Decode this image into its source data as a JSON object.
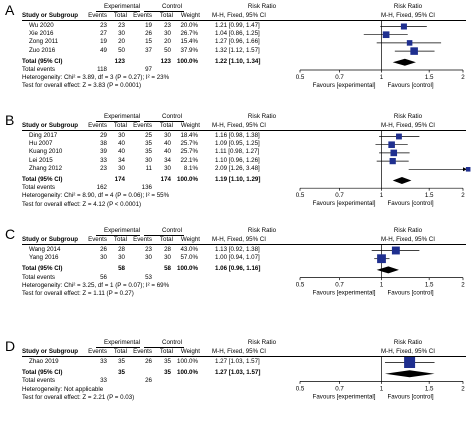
{
  "header": {
    "experimental": "Experimental",
    "control": "Control",
    "risk_ratio": "Risk Ratio",
    "study_col": "Study or Subgroup",
    "events": "Events",
    "total": "Total",
    "weight": "Weight",
    "mh_fixed": "M-H, Fixed, 95% CI"
  },
  "axis": {
    "ticks": [
      "0.5",
      "0.7",
      "1",
      "1.5",
      "2"
    ],
    "favours_left": "Favours [experimental]",
    "favours_right": "Favours [control]"
  },
  "chart_data": [
    {
      "type": "forest",
      "panel": "A",
      "scale": "log",
      "xlim": [
        0.5,
        2
      ],
      "studies": [
        {
          "name": "Wu 2020",
          "e_events": "23",
          "e_total": "23",
          "c_events": "19",
          "c_total": "23",
          "weight": "20.0%",
          "ci_text": "1.21 [0.99, 1.47]",
          "rr": 1.21,
          "lo": 0.99,
          "hi": 1.47,
          "w": 20.0
        },
        {
          "name": "Xie 2016",
          "e_events": "27",
          "e_total": "30",
          "c_events": "26",
          "c_total": "30",
          "weight": "26.7%",
          "ci_text": "1.04 [0.86, 1.25]",
          "rr": 1.04,
          "lo": 0.86,
          "hi": 1.25,
          "w": 26.7
        },
        {
          "name": "Zong 2011",
          "e_events": "19",
          "e_total": "20",
          "c_events": "15",
          "c_total": "20",
          "weight": "15.4%",
          "ci_text": "1.27 [0.96, 1.66]",
          "rr": 1.27,
          "lo": 0.96,
          "hi": 1.66,
          "w": 15.4
        },
        {
          "name": "Zuo 2016",
          "e_events": "49",
          "e_total": "50",
          "c_events": "37",
          "c_total": "50",
          "weight": "37.9%",
          "ci_text": "1.32 [1.12, 1.57]",
          "rr": 1.32,
          "lo": 1.12,
          "hi": 1.57,
          "w": 37.9
        }
      ],
      "total": {
        "label": "Total (95% CI)",
        "e_total": "123",
        "c_total": "123",
        "weight": "100.0%",
        "ci_text": "1.22 [1.10, 1.34]",
        "rr": 1.22,
        "lo": 1.1,
        "hi": 1.34
      },
      "total_events": {
        "label": "Total events",
        "e": "118",
        "c": "97"
      },
      "heterogeneity": "Heterogeneity: Chi² = 3.89, df = 3 (P = 0.27); I² = 23%",
      "overall": "Test for overall effect: Z = 3.83 (P = 0.0001)"
    },
    {
      "type": "forest",
      "panel": "B",
      "scale": "log",
      "xlim": [
        0.5,
        2
      ],
      "studies": [
        {
          "name": "Ding 2017",
          "e_events": "29",
          "e_total": "30",
          "c_events": "25",
          "c_total": "30",
          "weight": "18.4%",
          "ci_text": "1.16 [0.98, 1.38]",
          "rr": 1.16,
          "lo": 0.98,
          "hi": 1.38,
          "w": 18.4
        },
        {
          "name": "Hu 2007",
          "e_events": "38",
          "e_total": "40",
          "c_events": "35",
          "c_total": "40",
          "weight": "25.7%",
          "ci_text": "1.09 [0.95, 1.25]",
          "rr": 1.09,
          "lo": 0.95,
          "hi": 1.25,
          "w": 25.7
        },
        {
          "name": "Kuang 2010",
          "e_events": "39",
          "e_total": "40",
          "c_events": "35",
          "c_total": "40",
          "weight": "25.7%",
          "ci_text": "1.11 [0.98, 1.27]",
          "rr": 1.11,
          "lo": 0.98,
          "hi": 1.27,
          "w": 25.7
        },
        {
          "name": "Lei 2015",
          "e_events": "33",
          "e_total": "34",
          "c_events": "30",
          "c_total": "34",
          "weight": "22.1%",
          "ci_text": "1.10 [0.96, 1.26]",
          "rr": 1.1,
          "lo": 0.96,
          "hi": 1.26,
          "w": 22.1
        },
        {
          "name": "Zhang 2012",
          "e_events": "23",
          "e_total": "30",
          "c_events": "11",
          "c_total": "30",
          "weight": "8.1%",
          "ci_text": "2.09 [1.26, 3.48]",
          "rr": 2.09,
          "lo": 1.26,
          "hi": 3.48,
          "w": 8.1
        }
      ],
      "total": {
        "label": "Total (95% CI)",
        "e_total": "174",
        "c_total": "174",
        "weight": "100.0%",
        "ci_text": "1.19 [1.10, 1.29]",
        "rr": 1.19,
        "lo": 1.1,
        "hi": 1.29
      },
      "total_events": {
        "label": "Total events",
        "e": "162",
        "c": "136"
      },
      "heterogeneity": "Heterogeneity: Chi² = 8.90, df = 4 (P = 0.06); I² = 55%",
      "overall": "Test for overall effect: Z = 4.12 (P < 0.0001)"
    },
    {
      "type": "forest",
      "panel": "C",
      "scale": "log",
      "xlim": [
        0.5,
        2
      ],
      "studies": [
        {
          "name": "Wang 2014",
          "e_events": "26",
          "e_total": "28",
          "c_events": "23",
          "c_total": "28",
          "weight": "43.0%",
          "ci_text": "1.13 [0.92, 1.38]",
          "rr": 1.13,
          "lo": 0.92,
          "hi": 1.38,
          "w": 43.0
        },
        {
          "name": "Yang 2016",
          "e_events": "30",
          "e_total": "30",
          "c_events": "30",
          "c_total": "30",
          "weight": "57.0%",
          "ci_text": "1.00 [0.94, 1.07]",
          "rr": 1.0,
          "lo": 0.94,
          "hi": 1.07,
          "w": 57.0
        }
      ],
      "total": {
        "label": "Total (95% CI)",
        "e_total": "58",
        "c_total": "58",
        "weight": "100.0%",
        "ci_text": "1.06 [0.96, 1.16]",
        "rr": 1.06,
        "lo": 0.96,
        "hi": 1.16
      },
      "total_events": {
        "label": "Total events",
        "e": "56",
        "c": "53"
      },
      "heterogeneity": "Heterogeneity: Chi² = 3.25, df = 1 (P = 0.07); I² = 69%",
      "overall": "Test for overall effect: Z = 1.11 (P = 0.27)"
    },
    {
      "type": "forest",
      "panel": "D",
      "scale": "log",
      "xlim": [
        0.5,
        2
      ],
      "studies": [
        {
          "name": "Zhao 2019",
          "e_events": "33",
          "e_total": "35",
          "c_events": "26",
          "c_total": "35",
          "weight": "100.0%",
          "ci_text": "1.27 [1.03, 1.57]",
          "rr": 1.27,
          "lo": 1.03,
          "hi": 1.57,
          "w": 100.0
        }
      ],
      "total": {
        "label": "Total (95% CI)",
        "e_total": "35",
        "c_total": "35",
        "weight": "100.0%",
        "ci_text": "1.27 [1.03, 1.57]",
        "rr": 1.27,
        "lo": 1.03,
        "hi": 1.57
      },
      "total_events": {
        "label": "Total events",
        "e": "33",
        "c": "26"
      },
      "heterogeneity": "Heterogeneity: Not applicable",
      "overall": "Test for overall effect: Z = 2.21 (P = 0.03)"
    }
  ],
  "colors": {
    "marker": "#1f2f8f",
    "line": "#000000"
  }
}
